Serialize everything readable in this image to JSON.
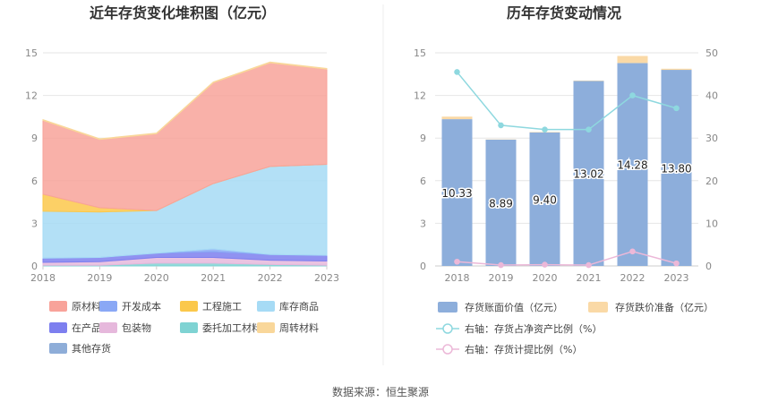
{
  "source": "数据来源：恒生聚源",
  "chart_data": [
    {
      "type": "area",
      "stacked": true,
      "title": "近年存货变化堆积图（亿元）",
      "x": [
        "2018",
        "2019",
        "2020",
        "2021",
        "2022",
        "2023"
      ],
      "ylim": [
        0,
        15
      ],
      "yticks": [
        0,
        3,
        6,
        9,
        12,
        15
      ],
      "grid": true,
      "legend_position": "bottom",
      "series": [
        {
          "name": "原材料",
          "color": "#F8A39A",
          "values": [
            5.2,
            4.8,
            5.4,
            7.1,
            7.3,
            6.7
          ]
        },
        {
          "name": "开发成本",
          "color": "#8AA8F5",
          "values": [
            0.0,
            0.0,
            0.0,
            0.2,
            0.0,
            0.0
          ]
        },
        {
          "name": "工程施工",
          "color": "#FBC84B",
          "values": [
            1.2,
            0.3,
            0.0,
            0.0,
            0.0,
            0.0
          ]
        },
        {
          "name": "库存商品",
          "color": "#A6DBF5",
          "values": [
            3.3,
            3.2,
            3.0,
            4.6,
            6.2,
            6.4
          ]
        },
        {
          "name": "在产品",
          "color": "#7D7FEF",
          "values": [
            0.3,
            0.3,
            0.3,
            0.4,
            0.4,
            0.4
          ]
        },
        {
          "name": "包装物",
          "color": "#E6B8DC",
          "values": [
            0.2,
            0.25,
            0.4,
            0.4,
            0.3,
            0.3
          ]
        },
        {
          "name": "委托加工材料",
          "color": "#7FD3D3",
          "values": [
            0.05,
            0.05,
            0.2,
            0.2,
            0.1,
            0.05
          ]
        },
        {
          "name": "周转材料",
          "color": "#F9D79A",
          "values": [
            0.05,
            0.05,
            0.05,
            0.05,
            0.05,
            0.05
          ]
        },
        {
          "name": "其他存货",
          "color": "#8EADD8",
          "values": [
            0.0,
            0.0,
            0.0,
            0.0,
            0.0,
            0.0
          ]
        }
      ]
    },
    {
      "type": "bar",
      "stacked": true,
      "title": "历年存货变动情况",
      "categories": [
        "2018",
        "2019",
        "2020",
        "2021",
        "2022",
        "2023"
      ],
      "ylim": [
        0,
        15
      ],
      "yticks": [
        0,
        3,
        6,
        9,
        12,
        15
      ],
      "y2lim": [
        0,
        50
      ],
      "y2ticks": [
        0,
        10,
        20,
        30,
        40,
        50
      ],
      "grid": true,
      "legend_position": "bottom",
      "series": [
        {
          "name": "存货账面价值（亿元）",
          "color": "#8DAEDB",
          "axis": "left",
          "kind": "bar",
          "values": [
            10.33,
            8.89,
            9.4,
            13.02,
            14.28,
            13.8
          ],
          "labels": [
            "10.33",
            "8.89",
            "9.40",
            "13.02",
            "14.28",
            "13.80"
          ]
        },
        {
          "name": "存货跌价准备（亿元）",
          "color": "#FAD9A6",
          "axis": "left",
          "kind": "bar",
          "values": [
            0.18,
            0.02,
            0.03,
            0.03,
            0.5,
            0.08
          ]
        },
        {
          "name": "右轴：存货占净资产比例（%）",
          "color": "#8ED8DF",
          "axis": "right",
          "kind": "line",
          "values": [
            45.5,
            33.0,
            32.0,
            32.0,
            40.0,
            37.0
          ]
        },
        {
          "name": "右轴：存货计提比例（%）",
          "color": "#ECB8D8",
          "axis": "right",
          "kind": "line",
          "values": [
            1.0,
            0.2,
            0.3,
            0.2,
            3.4,
            0.6
          ]
        }
      ]
    }
  ]
}
